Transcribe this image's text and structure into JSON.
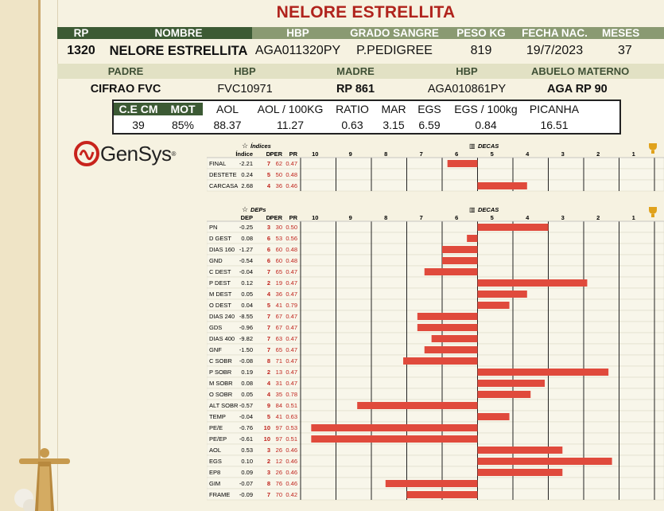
{
  "title": "NELORE ESTRELLITA",
  "header_row": {
    "labels": [
      "RP",
      "NOMBRE",
      "HBP",
      "GRADO SANGRE",
      "PESO KG",
      "FECHA NAC.",
      "MESES"
    ],
    "values": [
      "1320",
      "NELORE ESTRELLITA",
      "AGA011320PY",
      "P.PEDIGREE",
      "819",
      "19/7/2023",
      "37"
    ]
  },
  "parents_row": {
    "labels": [
      "PADRE",
      "HBP",
      "MADRE",
      "HBP",
      "ABUELO MATERNO"
    ],
    "values": [
      "CIFRAO FVC",
      "FVC10971",
      "RP 861",
      "AGA010861PY",
      "AGA RP 90"
    ]
  },
  "metrics": {
    "labels": [
      "C.E CM",
      "MOT",
      "AOL",
      "AOL / 100KG",
      "RATIO",
      "MAR",
      "EGS",
      "EGS / 100kg",
      "PICANHA"
    ],
    "values": [
      "39",
      "85%",
      "88.37",
      "11.27",
      "0.63",
      "3.15",
      "6.59",
      "0.84",
      "16.51"
    ]
  },
  "logo": {
    "text": "GenSys",
    "mark": "®"
  },
  "colors": {
    "red": "#b0231c",
    "green_dark": "#3c5a34",
    "green_mid": "#8a9a72",
    "bar": "#e04a3c"
  },
  "chart_data": [
    {
      "type": "bar",
      "title": "Índices",
      "axis_title": "DECAS",
      "trophy_icon": "trophy-icon",
      "columns": [
        "Índice",
        "D",
        "PER",
        "PR"
      ],
      "decas": [
        "10",
        "9",
        "8",
        "7",
        "6",
        "5",
        "4",
        "3",
        "2",
        "1"
      ],
      "rows": [
        {
          "name": "FINAL",
          "val": "-2.21",
          "d": "7",
          "per": "62",
          "pr": "0.47",
          "bar": -0.85
        },
        {
          "name": "DESTETE",
          "val": "0.24",
          "d": "5",
          "per": "50",
          "pr": "0.48",
          "bar": 0
        },
        {
          "name": "CARCASA",
          "val": "2.68",
          "d": "4",
          "per": "36",
          "pr": "0.46",
          "bar": 1.4
        }
      ]
    },
    {
      "type": "bar",
      "title": "DEPs",
      "axis_title": "DECAS",
      "trophy_icon": "trophy-icon",
      "columns": [
        "DEP",
        "D",
        "PER",
        "PR"
      ],
      "decas": [
        "10",
        "9",
        "8",
        "7",
        "6",
        "5",
        "4",
        "3",
        "2",
        "1"
      ],
      "rows": [
        {
          "name": "PN",
          "val": "-0.25",
          "d": "3",
          "per": "30",
          "pr": "0.50",
          "bar": 2.0
        },
        {
          "name": "D GEST",
          "val": "0.08",
          "d": "6",
          "per": "53",
          "pr": "0.56",
          "bar": -0.3
        },
        {
          "name": "DIAS 160",
          "val": "-1.27",
          "d": "6",
          "per": "60",
          "pr": "0.48",
          "bar": -1.0
        },
        {
          "name": "GND",
          "val": "-0.54",
          "d": "6",
          "per": "60",
          "pr": "0.48",
          "bar": -1.0
        },
        {
          "name": "C DEST",
          "val": "-0.04",
          "d": "7",
          "per": "65",
          "pr": "0.47",
          "bar": -1.5
        },
        {
          "name": "P DEST",
          "val": "0.12",
          "d": "2",
          "per": "19",
          "pr": "0.47",
          "bar": 3.1
        },
        {
          "name": "M DEST",
          "val": "0.05",
          "d": "4",
          "per": "36",
          "pr": "0.47",
          "bar": 1.4
        },
        {
          "name": "O DEST",
          "val": "0.04",
          "d": "5",
          "per": "41",
          "pr": "0.79",
          "bar": 0.9
        },
        {
          "name": "DIAS 240",
          "val": "-8.55",
          "d": "7",
          "per": "67",
          "pr": "0.47",
          "bar": -1.7
        },
        {
          "name": "GDS",
          "val": "-0.96",
          "d": "7",
          "per": "67",
          "pr": "0.47",
          "bar": -1.7
        },
        {
          "name": "DIAS 400",
          "val": "-9.82",
          "d": "7",
          "per": "63",
          "pr": "0.47",
          "bar": -1.3
        },
        {
          "name": "GNF",
          "val": "-1.50",
          "d": "7",
          "per": "65",
          "pr": "0.47",
          "bar": -1.5
        },
        {
          "name": "C SOBR",
          "val": "-0.08",
          "d": "8",
          "per": "71",
          "pr": "0.47",
          "bar": -2.1
        },
        {
          "name": "P SOBR",
          "val": "0.19",
          "d": "2",
          "per": "13",
          "pr": "0.47",
          "bar": 3.7
        },
        {
          "name": "M SOBR",
          "val": "0.08",
          "d": "4",
          "per": "31",
          "pr": "0.47",
          "bar": 1.9
        },
        {
          "name": "O SOBR",
          "val": "0.05",
          "d": "4",
          "per": "35",
          "pr": "0.78",
          "bar": 1.5
        },
        {
          "name": "ALT SOBR",
          "val": "-0.57",
          "d": "9",
          "per": "84",
          "pr": "0.51",
          "bar": -3.4
        },
        {
          "name": "TEMP",
          "val": "-0.04",
          "d": "5",
          "per": "41",
          "pr": "0.63",
          "bar": 0.9
        },
        {
          "name": "PE/E",
          "val": "-0.76",
          "d": "10",
          "per": "97",
          "pr": "0.53",
          "bar": -4.7
        },
        {
          "name": "PE/EP",
          "val": "-0.61",
          "d": "10",
          "per": "97",
          "pr": "0.51",
          "bar": -4.7
        },
        {
          "name": "AOL",
          "val": "0.53",
          "d": "3",
          "per": "26",
          "pr": "0.46",
          "bar": 2.4
        },
        {
          "name": "EGS",
          "val": "0.10",
          "d": "2",
          "per": "12",
          "pr": "0.46",
          "bar": 3.8
        },
        {
          "name": "EP8",
          "val": "0.09",
          "d": "3",
          "per": "26",
          "pr": "0.46",
          "bar": 2.4
        },
        {
          "name": "GIM",
          "val": "-0.07",
          "d": "8",
          "per": "76",
          "pr": "0.46",
          "bar": -2.6
        },
        {
          "name": "FRAME",
          "val": "-0.09",
          "d": "7",
          "per": "70",
          "pr": "0.42",
          "bar": -2.0
        }
      ]
    }
  ]
}
